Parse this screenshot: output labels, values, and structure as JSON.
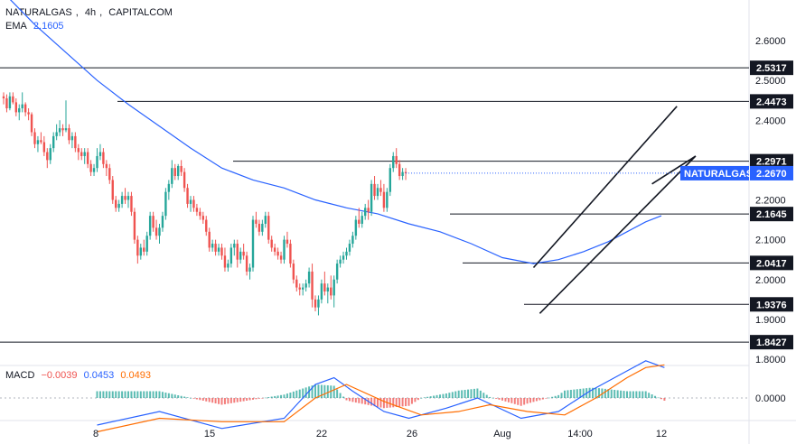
{
  "header": {
    "symbol": "NATURALGAS",
    "interval": "4h",
    "source": "CAPITALCOM",
    "ema_label": "EMA",
    "ema_value": "2.1605",
    "macd_label": "MACD",
    "macd_hist": "−0.0039",
    "macd_line": "0.0453",
    "macd_signal": "0.0493"
  },
  "colors": {
    "up": "#26a69a",
    "down": "#ef5350",
    "ema": "#2962ff",
    "macd_line": "#2962ff",
    "signal_line": "#ff6d00",
    "level_line": "#131722",
    "price_tag": "#2962ff"
  },
  "chart_data": [
    {
      "type": "candlestick",
      "title": "NATURALGAS, 4h, CAPITALCOM",
      "ylim": [
        1.78,
        2.7
      ],
      "y_ticks": [
        "2.6000",
        "2.5000",
        "2.4000",
        "2.3000",
        "2.2000",
        "2.1000",
        "2.0000",
        "1.9000",
        "1.8000"
      ],
      "x_ticks": [
        "8",
        "15",
        "22",
        "26",
        "Aug",
        "14:00",
        "12"
      ],
      "levels": [
        "2.5317",
        "2.4473",
        "2.2971",
        "2.1645",
        "2.0417",
        "1.9376",
        "1.8427"
      ],
      "last_price": {
        "label": "NATURALGAS",
        "value": "2.2670"
      },
      "ema_period_label": "EMA 2.1605",
      "candles": [
        [
          2.46,
          2.47,
          2.44,
          2.455
        ],
        [
          2.455,
          2.465,
          2.42,
          2.43
        ],
        [
          2.43,
          2.47,
          2.425,
          2.46
        ],
        [
          2.46,
          2.47,
          2.44,
          2.445
        ],
        [
          2.445,
          2.455,
          2.41,
          2.42
        ],
        [
          2.42,
          2.44,
          2.4,
          2.43
        ],
        [
          2.43,
          2.47,
          2.42,
          2.44
        ],
        [
          2.44,
          2.445,
          2.41,
          2.42
        ],
        [
          2.42,
          2.43,
          2.4,
          2.415
        ],
        [
          2.415,
          2.42,
          2.36,
          2.37
        ],
        [
          2.37,
          2.38,
          2.33,
          2.34
        ],
        [
          2.34,
          2.36,
          2.32,
          2.35
        ],
        [
          2.35,
          2.37,
          2.34,
          2.345
        ],
        [
          2.345,
          2.36,
          2.31,
          2.32
        ],
        [
          2.32,
          2.33,
          2.28,
          2.3
        ],
        [
          2.3,
          2.34,
          2.29,
          2.33
        ],
        [
          2.33,
          2.37,
          2.32,
          2.36
        ],
        [
          2.36,
          2.39,
          2.35,
          2.37
        ],
        [
          2.37,
          2.4,
          2.36,
          2.38
        ],
        [
          2.38,
          2.39,
          2.36,
          2.375
        ],
        [
          2.375,
          2.45,
          2.37,
          2.38
        ],
        [
          2.38,
          2.39,
          2.34,
          2.35
        ],
        [
          2.35,
          2.37,
          2.33,
          2.36
        ],
        [
          2.36,
          2.37,
          2.32,
          2.33
        ],
        [
          2.33,
          2.34,
          2.3,
          2.32
        ],
        [
          2.32,
          2.33,
          2.3,
          2.31
        ],
        [
          2.31,
          2.33,
          2.29,
          2.32
        ],
        [
          2.32,
          2.33,
          2.28,
          2.29
        ],
        [
          2.29,
          2.3,
          2.26,
          2.27
        ],
        [
          2.27,
          2.29,
          2.26,
          2.28
        ],
        [
          2.28,
          2.33,
          2.27,
          2.31
        ],
        [
          2.31,
          2.34,
          2.3,
          2.32
        ],
        [
          2.32,
          2.33,
          2.28,
          2.29
        ],
        [
          2.29,
          2.3,
          2.26,
          2.28
        ],
        [
          2.28,
          2.29,
          2.24,
          2.25
        ],
        [
          2.25,
          2.26,
          2.19,
          2.2
        ],
        [
          2.2,
          2.21,
          2.17,
          2.18
        ],
        [
          2.18,
          2.2,
          2.17,
          2.19
        ],
        [
          2.19,
          2.22,
          2.18,
          2.21
        ],
        [
          2.21,
          2.23,
          2.19,
          2.2
        ],
        [
          2.2,
          2.22,
          2.18,
          2.21
        ],
        [
          2.21,
          2.22,
          2.16,
          2.17
        ],
        [
          2.17,
          2.18,
          2.09,
          2.1
        ],
        [
          2.1,
          2.11,
          2.04,
          2.06
        ],
        [
          2.06,
          2.09,
          2.05,
          2.08
        ],
        [
          2.08,
          2.1,
          2.06,
          2.07
        ],
        [
          2.07,
          2.12,
          2.06,
          2.11
        ],
        [
          2.11,
          2.17,
          2.1,
          2.16
        ],
        [
          2.16,
          2.17,
          2.12,
          2.13
        ],
        [
          2.13,
          2.15,
          2.1,
          2.11
        ],
        [
          2.11,
          2.14,
          2.09,
          2.13
        ],
        [
          2.13,
          2.17,
          2.12,
          2.16
        ],
        [
          2.16,
          2.23,
          2.15,
          2.22
        ],
        [
          2.22,
          2.25,
          2.2,
          2.24
        ],
        [
          2.24,
          2.3,
          2.23,
          2.28
        ],
        [
          2.28,
          2.29,
          2.25,
          2.26
        ],
        [
          2.26,
          2.29,
          2.25,
          2.285
        ],
        [
          2.285,
          2.3,
          2.26,
          2.27
        ],
        [
          2.27,
          2.28,
          2.22,
          2.23
        ],
        [
          2.23,
          2.24,
          2.18,
          2.19
        ],
        [
          2.19,
          2.21,
          2.17,
          2.2
        ],
        [
          2.2,
          2.21,
          2.17,
          2.18
        ],
        [
          2.18,
          2.19,
          2.16,
          2.17
        ],
        [
          2.17,
          2.18,
          2.15,
          2.16
        ],
        [
          2.16,
          2.17,
          2.14,
          2.15
        ],
        [
          2.15,
          2.16,
          2.11,
          2.12
        ],
        [
          2.12,
          2.13,
          2.07,
          2.08
        ],
        [
          2.08,
          2.1,
          2.07,
          2.09
        ],
        [
          2.09,
          2.1,
          2.06,
          2.07
        ],
        [
          2.07,
          2.09,
          2.06,
          2.08
        ],
        [
          2.08,
          2.09,
          2.05,
          2.06
        ],
        [
          2.06,
          2.08,
          2.02,
          2.03
        ],
        [
          2.03,
          2.05,
          2.02,
          2.04
        ],
        [
          2.04,
          2.09,
          2.03,
          2.08
        ],
        [
          2.08,
          2.1,
          2.06,
          2.09
        ],
        [
          2.09,
          2.1,
          2.03,
          2.05
        ],
        [
          2.05,
          2.08,
          2.04,
          2.07
        ],
        [
          2.07,
          2.09,
          2.05,
          2.06
        ],
        [
          2.06,
          2.07,
          2.01,
          2.02
        ],
        [
          2.02,
          2.04,
          2.0,
          2.03
        ],
        [
          2.03,
          2.16,
          2.02,
          2.15
        ],
        [
          2.15,
          2.17,
          2.13,
          2.14
        ],
        [
          2.14,
          2.15,
          2.11,
          2.12
        ],
        [
          2.12,
          2.15,
          2.11,
          2.14
        ],
        [
          2.14,
          2.17,
          2.13,
          2.16
        ],
        [
          2.16,
          2.17,
          2.09,
          2.1
        ],
        [
          2.1,
          2.11,
          2.07,
          2.08
        ],
        [
          2.08,
          2.09,
          2.06,
          2.07
        ],
        [
          2.07,
          2.08,
          2.05,
          2.06
        ],
        [
          2.06,
          2.07,
          2.04,
          2.05
        ],
        [
          2.05,
          2.11,
          2.04,
          2.1
        ],
        [
          2.1,
          2.12,
          2.08,
          2.09
        ],
        [
          2.09,
          2.1,
          2.03,
          2.04
        ],
        [
          2.04,
          2.05,
          1.99,
          2.0
        ],
        [
          2.0,
          2.01,
          1.97,
          1.98
        ],
        [
          1.98,
          1.99,
          1.96,
          1.975
        ],
        [
          1.975,
          1.99,
          1.96,
          1.98
        ],
        [
          1.98,
          2.0,
          1.97,
          1.99
        ],
        [
          1.99,
          2.03,
          1.98,
          2.02
        ],
        [
          2.02,
          2.04,
          1.93,
          1.95
        ],
        [
          1.95,
          1.96,
          1.92,
          1.93
        ],
        [
          1.93,
          1.96,
          1.91,
          1.95
        ],
        [
          1.95,
          2.0,
          1.94,
          1.99
        ],
        [
          1.99,
          2.02,
          1.96,
          1.97
        ],
        [
          1.97,
          1.99,
          1.94,
          1.98
        ],
        [
          1.98,
          2.01,
          1.95,
          1.96
        ],
        [
          1.96,
          2.01,
          1.93,
          2.0
        ],
        [
          2.0,
          2.05,
          1.99,
          2.04
        ],
        [
          2.04,
          2.06,
          2.03,
          2.05
        ],
        [
          2.05,
          2.07,
          2.04,
          2.06
        ],
        [
          2.06,
          2.08,
          2.05,
          2.07
        ],
        [
          2.07,
          2.1,
          2.06,
          2.09
        ],
        [
          2.09,
          2.12,
          2.08,
          2.11
        ],
        [
          2.11,
          2.16,
          2.1,
          2.15
        ],
        [
          2.15,
          2.18,
          2.13,
          2.14
        ],
        [
          2.14,
          2.17,
          2.13,
          2.16
        ],
        [
          2.16,
          2.19,
          2.15,
          2.18
        ],
        [
          2.18,
          2.2,
          2.15,
          2.17
        ],
        [
          2.17,
          2.25,
          2.16,
          2.24
        ],
        [
          2.24,
          2.26,
          2.2,
          2.21
        ],
        [
          2.21,
          2.24,
          2.2,
          2.23
        ],
        [
          2.23,
          2.25,
          2.21,
          2.22
        ],
        [
          2.22,
          2.24,
          2.17,
          2.18
        ],
        [
          2.18,
          2.23,
          2.17,
          2.22
        ],
        [
          2.22,
          2.29,
          2.21,
          2.28
        ],
        [
          2.28,
          2.32,
          2.27,
          2.31
        ],
        [
          2.31,
          2.33,
          2.28,
          2.29
        ],
        [
          2.29,
          2.3,
          2.25,
          2.26
        ],
        [
          2.26,
          2.28,
          2.25,
          2.27
        ],
        [
          2.27,
          2.28,
          2.25,
          2.267
        ]
      ],
      "ema": [
        [
          0,
          2.72
        ],
        [
          10,
          2.64
        ],
        [
          20,
          2.57
        ],
        [
          30,
          2.5
        ],
        [
          40,
          2.44
        ],
        [
          50,
          2.385
        ],
        [
          60,
          2.33
        ],
        [
          70,
          2.28
        ],
        [
          80,
          2.25
        ],
        [
          90,
          2.23
        ],
        [
          100,
          2.2
        ],
        [
          110,
          2.18
        ],
        [
          120,
          2.165
        ],
        [
          130,
          2.14
        ],
        [
          140,
          2.12
        ],
        [
          150,
          2.09
        ],
        [
          160,
          2.055
        ],
        [
          170,
          2.04
        ],
        [
          178,
          2.05
        ],
        [
          186,
          2.07
        ],
        [
          194,
          2.095
        ],
        [
          200,
          2.12
        ],
        [
          206,
          2.145
        ],
        [
          211,
          2.16
        ]
      ],
      "channel": {
        "lower_line": [
          [
            172,
            1.915
          ],
          [
            222,
            2.31
          ]
        ],
        "upper_line": [
          [
            170,
            2.03
          ],
          [
            216,
            2.435
          ]
        ],
        "mid_line": [
          [
            208,
            2.24
          ],
          [
            222,
            2.31
          ]
        ]
      }
    },
    {
      "type": "macd",
      "title": "MACD",
      "y_ticks": [
        "0.0000"
      ],
      "ylim": [
        -0.06,
        0.08
      ],
      "macd_line": [
        [
          30,
          -0.04
        ],
        [
          50,
          -0.02
        ],
        [
          70,
          -0.045
        ],
        [
          90,
          -0.03
        ],
        [
          100,
          0.02
        ],
        [
          106,
          0.03
        ],
        [
          112,
          0.01
        ],
        [
          122,
          -0.02
        ],
        [
          130,
          -0.03
        ],
        [
          142,
          -0.015
        ],
        [
          152,
          0.0
        ],
        [
          166,
          -0.03
        ],
        [
          178,
          -0.02
        ],
        [
          188,
          0.01
        ],
        [
          200,
          0.04
        ],
        [
          206,
          0.055
        ],
        [
          212,
          0.045
        ]
      ],
      "signal_line": [
        [
          30,
          -0.05
        ],
        [
          50,
          -0.03
        ],
        [
          70,
          -0.035
        ],
        [
          90,
          -0.035
        ],
        [
          100,
          0.0
        ],
        [
          110,
          0.02
        ],
        [
          122,
          -0.005
        ],
        [
          134,
          -0.025
        ],
        [
          146,
          -0.02
        ],
        [
          156,
          -0.01
        ],
        [
          168,
          -0.02
        ],
        [
          180,
          -0.025
        ],
        [
          190,
          0.0
        ],
        [
          200,
          0.03
        ],
        [
          206,
          0.045
        ],
        [
          212,
          0.049
        ]
      ],
      "hist_hint": "histogram colored positive teal, negative red, last bar -0.0039"
    }
  ]
}
